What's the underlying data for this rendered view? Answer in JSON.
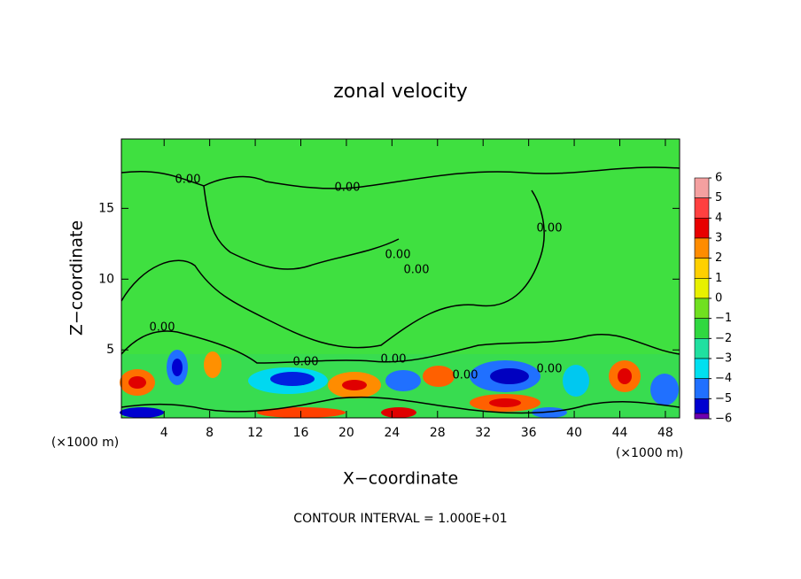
{
  "chart_data": {
    "type": "contour",
    "title": "zonal velocity",
    "xlabel": "X−coordinate",
    "ylabel": "Z−coordinate",
    "x_unit_label": "(×1000 m)",
    "y_unit_label": "(×1000 m)",
    "footer": "CONTOUR INTERVAL = 1.000E+01",
    "xlim": [
      0.25,
      49.25
    ],
    "ylim": [
      0.2,
      19.9
    ],
    "xticks": [
      4,
      8,
      12,
      16,
      20,
      24,
      28,
      32,
      36,
      40,
      44,
      48
    ],
    "yticks": [
      5,
      10,
      15
    ],
    "contour_labels": [
      "0.00",
      "0.00",
      "0.00",
      "0.00",
      "0.00",
      "0.00",
      "0.00",
      "0.00",
      "0.00",
      "0.00"
    ],
    "colorbar": {
      "ticks": [
        {
          "value": 6,
          "label": "6"
        },
        {
          "value": 5,
          "label": "5"
        },
        {
          "value": 4,
          "label": "4"
        },
        {
          "value": 3,
          "label": "3"
        },
        {
          "value": 2,
          "label": "2"
        },
        {
          "value": 1,
          "label": "1"
        },
        {
          "value": 0,
          "label": "0"
        },
        {
          "value": -1,
          "label": "−1"
        },
        {
          "value": -2,
          "label": "−2"
        },
        {
          "value": -3,
          "label": "−3"
        },
        {
          "value": -4,
          "label": "−4"
        },
        {
          "value": -5,
          "label": "−5"
        },
        {
          "value": -6,
          "label": "−6"
        }
      ],
      "colors": [
        "#f4a0a0",
        "#ff4040",
        "#e80000",
        "#ff8c00",
        "#ffd000",
        "#e8f000",
        "#70e020",
        "#30d840",
        "#20e0a0",
        "#00e0f0",
        "#2070ff",
        "#0000d0",
        "#7000b0"
      ]
    }
  }
}
